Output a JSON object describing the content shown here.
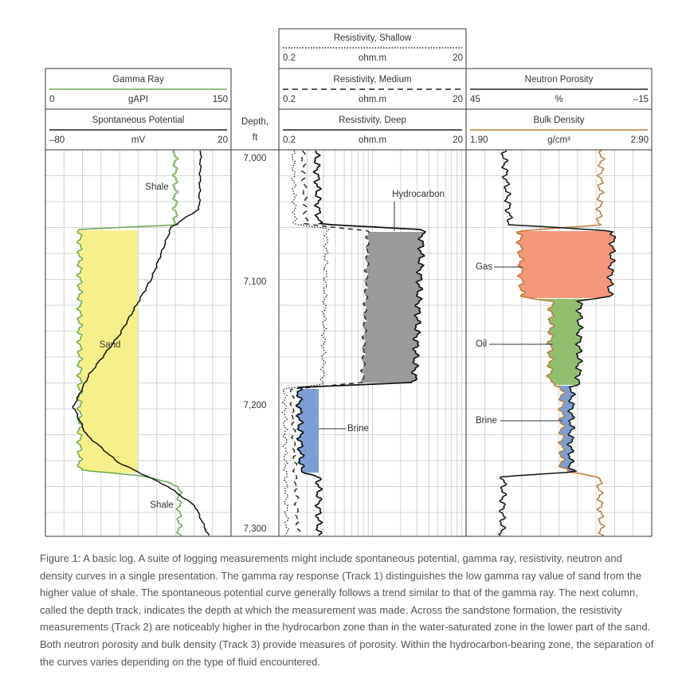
{
  "headers": {
    "resistivity_shallow": {
      "title": "Resistivity, Shallow",
      "unit": "ohm.m",
      "left": "0.2",
      "right": "20"
    },
    "resistivity_medium": {
      "title": "Resistivity, Medium",
      "unit": "ohm.m",
      "left": "0.2",
      "right": "20"
    },
    "resistivity_deep": {
      "title": "Resistivity, Deep",
      "unit": "ohm.m",
      "left": "0.2",
      "right": "20"
    },
    "gamma_ray": {
      "title": "Gamma Ray",
      "unit": "gAPI",
      "left": "0",
      "right": "150"
    },
    "spontaneous_potential": {
      "title": "Spontaneous Potential",
      "unit": "mV",
      "left": "–80",
      "right": "20"
    },
    "neutron_porosity": {
      "title": "Neutron Porosity",
      "unit": "%",
      "left": "45",
      "right": "–15"
    },
    "bulk_density": {
      "title": "Bulk Density",
      "unit": "g/cm³",
      "left": "1.90",
      "right": "2.90"
    }
  },
  "depth": {
    "title": "Depth,",
    "unit": "ft",
    "labels": [
      "7,000",
      "7,100",
      "7,200",
      "7,300"
    ]
  },
  "annotations": {
    "shale_upper": "Shale",
    "sand": "Sand",
    "shale_lower": "Shale",
    "hydrocarbon": "Hydrocarbon",
    "brine_resistivity": "Brine",
    "gas": "Gas",
    "oil": "Oil",
    "brine_density": "Brine"
  },
  "caption": "Figure 1: A basic log. A suite of logging measurements might include spontaneous potential, gamma ray, resistivity, neutron and density curves in a single presentation. The gamma ray response (Track 1) distinguishes the low gamma ray value of sand from the higher value of shale. The spontaneous potential curve generally follows a trend similar to that of the gamma ray. The next column, called the depth track, indicates the depth at which the measurement was made. Across the sandstone formation, the resistivity measurements (Track 2) are noticeably higher in the hydrocarbon zone than in the water-saturated zone in the lower part of the sand. Both neutron porosity and bulk density (Track 3) provide measures of porosity. Within the hydrocarbon-bearing zone, the separation of the curves varies depending on the type of fluid encountered."
}
